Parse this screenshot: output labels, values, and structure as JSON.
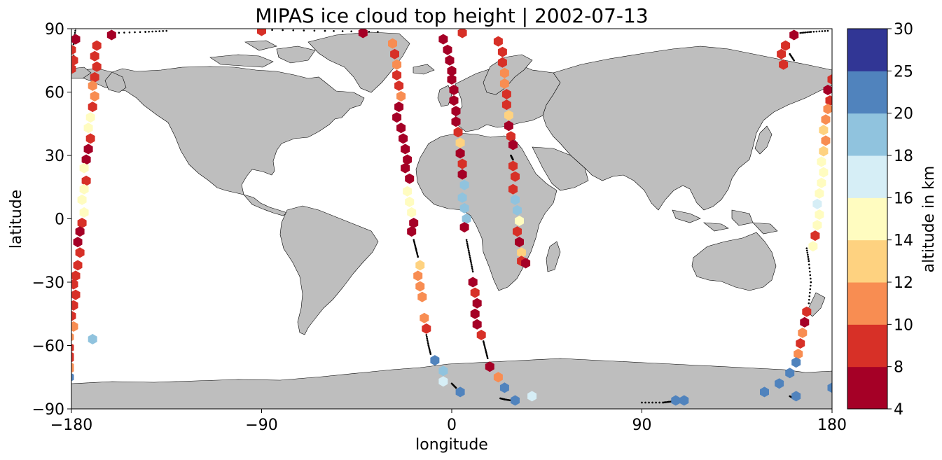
{
  "chart_data": {
    "type": "scatter",
    "title": "MIPAS ice cloud top height | 2002-07-13",
    "xlabel": "longitude",
    "ylabel": "latitude",
    "xlim": [
      -180,
      180
    ],
    "ylim": [
      -90,
      90
    ],
    "x_ticks": [
      "−180",
      "−90",
      "0",
      "90",
      "180"
    ],
    "y_ticks": [
      "90",
      "60",
      "30",
      "0",
      "−30",
      "−60",
      "−90"
    ],
    "x_tick_values": [
      -180,
      -90,
      0,
      90,
      180
    ],
    "y_tick_values": [
      90,
      60,
      30,
      0,
      -30,
      -60,
      -90
    ],
    "grid": false,
    "background_map": "world land masses (gray)",
    "colorbar": {
      "label": "altitude in km",
      "boundaries": [
        4,
        8,
        10,
        12,
        14,
        16,
        18,
        20,
        25,
        30
      ],
      "tick_labels": [
        "4",
        "8",
        "10",
        "12",
        "14",
        "16",
        "18",
        "20",
        "25",
        "30"
      ],
      "colors": [
        "#a50026",
        "#d73027",
        "#f46d43",
        "#fdae61",
        "#fee090",
        "#ffffbf",
        "#e0f3f8",
        "#abd9e9",
        "#74add1",
        "#4575b4",
        "#313695"
      ],
      "bin_colors": [
        "#a50026",
        "#d73027",
        "#f88d52",
        "#fed280",
        "#fffcc0",
        "#d6eef6",
        "#90c3de",
        "#5083bd",
        "#313695"
      ]
    },
    "series": [
      {
        "track": "orbit-west",
        "points": [
          {
            "lon": -178,
            "lat": 85,
            "alt": 6
          },
          {
            "lon": -180,
            "lat": 80,
            "alt": 9
          },
          {
            "lon": -179,
            "lat": 75,
            "alt": 9
          },
          {
            "lon": -180,
            "lat": 71,
            "alt": 9
          },
          {
            "lon": -161,
            "lat": 87,
            "alt": 6
          },
          {
            "lon": -168,
            "lat": 82,
            "alt": 9
          },
          {
            "lon": -169,
            "lat": 77,
            "alt": 9
          },
          {
            "lon": -168,
            "lat": 72,
            "alt": 9
          },
          {
            "lon": -169,
            "lat": 67,
            "alt": 9
          },
          {
            "lon": -170,
            "lat": 63,
            "alt": 11
          },
          {
            "lon": -169,
            "lat": 58,
            "alt": 11
          },
          {
            "lon": -170,
            "lat": 53,
            "alt": 9
          },
          {
            "lon": -171,
            "lat": 48,
            "alt": 15
          },
          {
            "lon": -172,
            "lat": 43,
            "alt": 15
          },
          {
            "lon": -171,
            "lat": 38,
            "alt": 9
          },
          {
            "lon": -172,
            "lat": 33,
            "alt": 6
          },
          {
            "lon": -173,
            "lat": 28,
            "alt": 6
          },
          {
            "lon": -174,
            "lat": 24,
            "alt": 15
          },
          {
            "lon": -173,
            "lat": 18,
            "alt": 9
          },
          {
            "lon": -174,
            "lat": 14,
            "alt": 15
          },
          {
            "lon": -175,
            "lat": 9,
            "alt": 15
          },
          {
            "lon": -174,
            "lat": 3,
            "alt": 15
          },
          {
            "lon": -175,
            "lat": -2,
            "alt": 9
          },
          {
            "lon": -176,
            "lat": -6,
            "alt": 6
          },
          {
            "lon": -177,
            "lat": -11,
            "alt": 6
          },
          {
            "lon": -176,
            "lat": -16,
            "alt": 9
          },
          {
            "lon": -177,
            "lat": -22,
            "alt": 9
          },
          {
            "lon": -178,
            "lat": -27,
            "alt": 9
          },
          {
            "lon": -179,
            "lat": -31,
            "alt": 9
          },
          {
            "lon": -178,
            "lat": -36,
            "alt": 9
          },
          {
            "lon": -179,
            "lat": -41,
            "alt": 9
          },
          {
            "lon": -180,
            "lat": -46,
            "alt": 9
          },
          {
            "lon": -179,
            "lat": -51,
            "alt": 11
          },
          {
            "lon": -181,
            "lat": -56,
            "alt": 11
          },
          {
            "lon": -182,
            "lat": -61,
            "alt": 9
          },
          {
            "lon": -184,
            "lat": -65,
            "alt": 9
          },
          {
            "lon": -186,
            "lat": -70,
            "alt": 11
          },
          {
            "lon": -191,
            "lat": -75,
            "alt": 22
          }
        ]
      },
      {
        "track": "orbit-west-south",
        "points": [
          {
            "lon": -183,
            "lat": -61,
            "alt": 9
          },
          {
            "lon": -185,
            "lat": -66,
            "alt": 9
          },
          {
            "lon": -188,
            "lat": -71,
            "alt": 11
          },
          {
            "lon": -170,
            "lat": -57,
            "alt": 19
          }
        ]
      },
      {
        "track": "orbit-atlantic",
        "points": [
          {
            "lon": -90,
            "lat": 89,
            "alt": 9
          },
          {
            "lon": -42,
            "lat": 88,
            "alt": 6
          },
          {
            "lon": -28,
            "lat": 83,
            "alt": 11
          },
          {
            "lon": -27,
            "lat": 78,
            "alt": 9
          },
          {
            "lon": -26,
            "lat": 73,
            "alt": 11
          },
          {
            "lon": -26,
            "lat": 68,
            "alt": 9
          },
          {
            "lon": -25,
            "lat": 63,
            "alt": 9
          },
          {
            "lon": -24,
            "lat": 58,
            "alt": 11
          },
          {
            "lon": -25,
            "lat": 53,
            "alt": 6
          },
          {
            "lon": -26,
            "lat": 48,
            "alt": 6
          },
          {
            "lon": -24,
            "lat": 43,
            "alt": 6
          },
          {
            "lon": -23,
            "lat": 38,
            "alt": 6
          },
          {
            "lon": -22,
            "lat": 33,
            "alt": 6
          },
          {
            "lon": -21,
            "lat": 28,
            "alt": 6
          },
          {
            "lon": -22,
            "lat": 24,
            "alt": 6
          },
          {
            "lon": -20,
            "lat": 19,
            "alt": 6
          },
          {
            "lon": -21,
            "lat": 13,
            "alt": 15
          },
          {
            "lon": -20,
            "lat": 8,
            "alt": 15
          },
          {
            "lon": -19,
            "lat": 3,
            "alt": 15
          },
          {
            "lon": -18,
            "lat": -2,
            "alt": 6
          },
          {
            "lon": -19,
            "lat": -6,
            "alt": 6
          },
          {
            "lon": -15,
            "lat": -22,
            "alt": 13
          },
          {
            "lon": -16,
            "lat": -27,
            "alt": 11
          },
          {
            "lon": -15,
            "lat": -32,
            "alt": 11
          },
          {
            "lon": -14,
            "lat": -37,
            "alt": 11
          },
          {
            "lon": -13,
            "lat": -47,
            "alt": 11
          },
          {
            "lon": -12,
            "lat": -52,
            "alt": 9
          },
          {
            "lon": -8,
            "lat": -67,
            "alt": 22
          },
          {
            "lon": -4,
            "lat": -72,
            "alt": 19
          },
          {
            "lon": -4,
            "lat": -77,
            "alt": 17
          },
          {
            "lon": 4,
            "lat": -82,
            "alt": 22
          }
        ]
      },
      {
        "track": "orbit-europe-africa",
        "points": [
          {
            "lon": -4,
            "lat": 85,
            "alt": 6
          },
          {
            "lon": -2,
            "lat": 80,
            "alt": 6
          },
          {
            "lon": -1,
            "lat": 75,
            "alt": 6
          },
          {
            "lon": 0,
            "lat": 70,
            "alt": 6
          },
          {
            "lon": 0,
            "lat": 66,
            "alt": 6
          },
          {
            "lon": 1,
            "lat": 61,
            "alt": 6
          },
          {
            "lon": 1,
            "lat": 56,
            "alt": 6
          },
          {
            "lon": 2,
            "lat": 51,
            "alt": 6
          },
          {
            "lon": 2,
            "lat": 46,
            "alt": 6
          },
          {
            "lon": 3,
            "lat": 41,
            "alt": 9
          },
          {
            "lon": 4,
            "lat": 36,
            "alt": 13
          },
          {
            "lon": 4,
            "lat": 31,
            "alt": 6
          },
          {
            "lon": 5,
            "lat": 26,
            "alt": 9
          },
          {
            "lon": 5,
            "lat": 21,
            "alt": 6
          },
          {
            "lon": 6,
            "lat": 16,
            "alt": 19
          },
          {
            "lon": 5,
            "lat": 10,
            "alt": 19
          },
          {
            "lon": 6,
            "lat": 5,
            "alt": 19
          },
          {
            "lon": 7,
            "lat": 0,
            "alt": 19
          },
          {
            "lon": 6,
            "lat": -4,
            "alt": 6
          },
          {
            "lon": 10,
            "lat": -30,
            "alt": 6
          },
          {
            "lon": 11,
            "lat": -35,
            "alt": 9
          },
          {
            "lon": 12,
            "lat": -40,
            "alt": 6
          },
          {
            "lon": 11,
            "lat": -45,
            "alt": 6
          },
          {
            "lon": 12,
            "lat": -50,
            "alt": 6
          },
          {
            "lon": 14,
            "lat": -55,
            "alt": 9
          },
          {
            "lon": 18,
            "lat": -70,
            "alt": 6
          },
          {
            "lon": 22,
            "lat": -75,
            "alt": 11
          },
          {
            "lon": 25,
            "lat": -80,
            "alt": 22
          },
          {
            "lon": 30,
            "lat": -86,
            "alt": 22
          }
        ]
      },
      {
        "track": "orbit-east-africa",
        "points": [
          {
            "lon": 5,
            "lat": 88,
            "alt": 9
          },
          {
            "lon": 22,
            "lat": 84,
            "alt": 9
          },
          {
            "lon": 24,
            "lat": 79,
            "alt": 9
          },
          {
            "lon": 24,
            "lat": 74,
            "alt": 9
          },
          {
            "lon": 25,
            "lat": 69,
            "alt": 11
          },
          {
            "lon": 25,
            "lat": 64,
            "alt": 11
          },
          {
            "lon": 26,
            "lat": 59,
            "alt": 9
          },
          {
            "lon": 26,
            "lat": 54,
            "alt": 9
          },
          {
            "lon": 27,
            "lat": 49,
            "alt": 13
          },
          {
            "lon": 27,
            "lat": 44,
            "alt": 6
          },
          {
            "lon": 28,
            "lat": 39,
            "alt": 9
          },
          {
            "lon": 29,
            "lat": 35,
            "alt": 6
          },
          {
            "lon": 29,
            "lat": 25,
            "alt": 9
          },
          {
            "lon": 30,
            "lat": 20,
            "alt": 9
          },
          {
            "lon": 29,
            "lat": 14,
            "alt": 9
          },
          {
            "lon": 30,
            "lat": 9,
            "alt": 19
          },
          {
            "lon": 31,
            "lat": 4,
            "alt": 19
          },
          {
            "lon": 32,
            "lat": -1,
            "alt": 15
          },
          {
            "lon": 31,
            "lat": -6,
            "alt": 9
          },
          {
            "lon": 32,
            "lat": -11,
            "alt": 6
          },
          {
            "lon": 33,
            "lat": -16,
            "alt": 13
          },
          {
            "lon": 33,
            "lat": -20,
            "alt": 9
          },
          {
            "lon": 35,
            "lat": -21,
            "alt": 6
          },
          {
            "lon": 38,
            "lat": -84,
            "alt": 17
          }
        ]
      },
      {
        "track": "orbit-pacific-east",
        "points": [
          {
            "lon": 162,
            "lat": 87,
            "alt": 6
          },
          {
            "lon": 158,
            "lat": 82,
            "alt": 9
          },
          {
            "lon": 156,
            "lat": 78,
            "alt": 9
          },
          {
            "lon": 157,
            "lat": 73,
            "alt": 9
          },
          {
            "lon": 178,
            "lat": 61,
            "alt": 6
          },
          {
            "lon": 179,
            "lat": 56,
            "alt": 9
          },
          {
            "lon": 178,
            "lat": 52,
            "alt": 11
          },
          {
            "lon": 177,
            "lat": 47,
            "alt": 11
          },
          {
            "lon": 176,
            "lat": 42,
            "alt": 13
          },
          {
            "lon": 177,
            "lat": 37,
            "alt": 11
          },
          {
            "lon": 176,
            "lat": 32,
            "alt": 13
          },
          {
            "lon": 175,
            "lat": 27,
            "alt": 15
          },
          {
            "lon": 176,
            "lat": 22,
            "alt": 15
          },
          {
            "lon": 175,
            "lat": 17,
            "alt": 15
          },
          {
            "lon": 174,
            "lat": 12,
            "alt": 15
          },
          {
            "lon": 173,
            "lat": 7,
            "alt": 17
          },
          {
            "lon": 174,
            "lat": 2,
            "alt": 15
          },
          {
            "lon": 173,
            "lat": -3,
            "alt": 15
          },
          {
            "lon": 172,
            "lat": -8,
            "alt": 9
          },
          {
            "lon": 171,
            "lat": -13,
            "alt": 15
          },
          {
            "lon": 168,
            "lat": -44,
            "alt": 9
          },
          {
            "lon": 167,
            "lat": -49,
            "alt": 6
          },
          {
            "lon": 166,
            "lat": -54,
            "alt": 11
          },
          {
            "lon": 165,
            "lat": -59,
            "alt": 9
          },
          {
            "lon": 164,
            "lat": -64,
            "alt": 11
          },
          {
            "lon": 163,
            "lat": -68,
            "alt": 22
          },
          {
            "lon": 160,
            "lat": -73,
            "alt": 22
          },
          {
            "lon": 155,
            "lat": -78,
            "alt": 22
          },
          {
            "lon": 148,
            "lat": -82,
            "alt": 22
          },
          {
            "lon": 163,
            "lat": -84,
            "alt": 22
          },
          {
            "lon": 180,
            "lat": -80,
            "alt": 22
          },
          {
            "lon": 180,
            "lat": 66,
            "alt": 9
          }
        ]
      },
      {
        "track": "orbit-south-pole",
        "points": [
          {
            "lon": 106,
            "lat": -86,
            "alt": 22
          },
          {
            "lon": 110,
            "lat": -86,
            "alt": 22
          }
        ]
      }
    ],
    "no_cloud_tracks": [
      [
        [
          -178,
          90
        ],
        [
          -179,
          84
        ],
        [
          -179,
          76
        ]
      ],
      [
        [
          -160,
          88
        ],
        [
          -145,
          88.5
        ],
        [
          -135,
          89
        ]
      ],
      [
        [
          -90,
          89.5
        ],
        [
          -60,
          89
        ],
        [
          -35,
          88.5
        ]
      ],
      [
        [
          -18,
          -10
        ],
        [
          -17,
          -14
        ],
        [
          -16,
          -18
        ]
      ],
      [
        [
          -12,
          -55
        ],
        [
          -11,
          -60
        ],
        [
          -10,
          -64
        ]
      ],
      [
        [
          7,
          -10
        ],
        [
          8,
          -15
        ],
        [
          9,
          -20
        ],
        [
          10,
          -25
        ]
      ],
      [
        [
          15,
          -58
        ],
        [
          16,
          -62
        ],
        [
          17,
          -66
        ]
      ],
      [
        [
          28,
          30
        ],
        [
          28.5,
          29
        ],
        [
          29,
          28
        ]
      ],
      [
        [
          34,
          -22
        ],
        [
          35,
          -23
        ]
      ],
      [
        [
          23,
          -85
        ],
        [
          25,
          -85.5
        ],
        [
          28,
          -86
        ]
      ],
      [
        [
          90,
          -87
        ],
        [
          100,
          -87
        ],
        [
          104,
          -86.5
        ]
      ],
      [
        [
          168,
          -14
        ],
        [
          169,
          -20
        ],
        [
          170,
          -30
        ],
        [
          169,
          -40
        ]
      ],
      [
        [
          160,
          -84
        ],
        [
          162,
          -85
        ]
      ],
      [
        [
          165,
          88
        ],
        [
          170,
          88.5
        ],
        [
          178,
          89
        ]
      ],
      [
        [
          160,
          78
        ],
        [
          162,
          75
        ]
      ],
      [
        [
          0,
          -78
        ],
        [
          2,
          -80
        ]
      ]
    ]
  }
}
